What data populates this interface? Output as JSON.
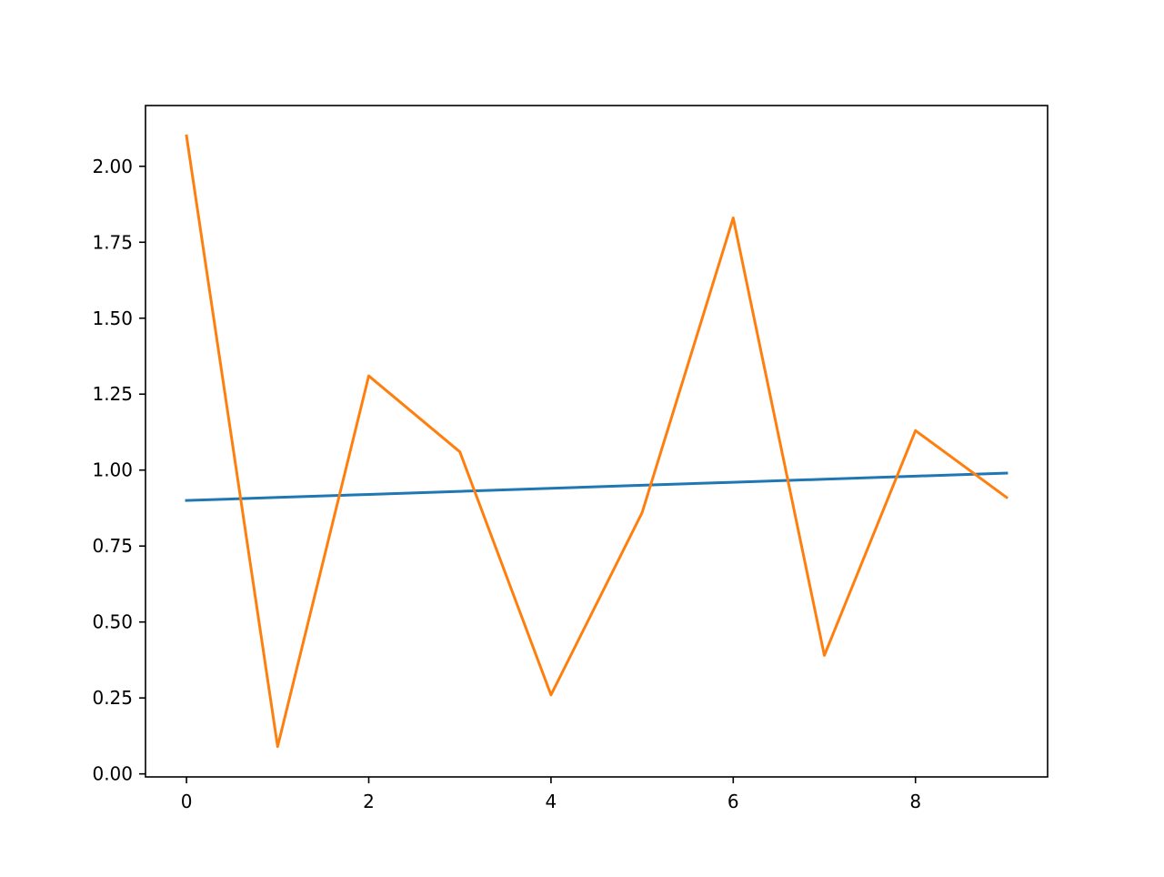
{
  "chart_data": {
    "type": "line",
    "title": "",
    "xlabel": "",
    "ylabel": "",
    "xlim": [
      -0.45,
      9.45
    ],
    "ylim": [
      -0.01,
      2.2
    ],
    "x_ticks": [
      0,
      2,
      4,
      6,
      8
    ],
    "x_tick_labels": [
      "0",
      "2",
      "4",
      "6",
      "8"
    ],
    "y_ticks": [
      0.0,
      0.25,
      0.5,
      0.75,
      1.0,
      1.25,
      1.5,
      1.75,
      2.0
    ],
    "y_tick_labels": [
      "0.00",
      "0.25",
      "0.50",
      "0.75",
      "1.00",
      "1.25",
      "1.50",
      "1.75",
      "2.00"
    ],
    "grid": false,
    "legend": false,
    "x": [
      0,
      1,
      2,
      3,
      4,
      5,
      6,
      7,
      8,
      9
    ],
    "series": [
      {
        "color": "#1f77b4",
        "values": [
          0.9,
          0.91,
          0.92,
          0.93,
          0.94,
          0.95,
          0.96,
          0.97,
          0.98,
          0.99
        ]
      },
      {
        "color": "#ff7f0e",
        "values": [
          2.1,
          0.09,
          1.31,
          1.06,
          0.26,
          0.86,
          1.83,
          0.39,
          1.13,
          0.91
        ]
      }
    ]
  }
}
